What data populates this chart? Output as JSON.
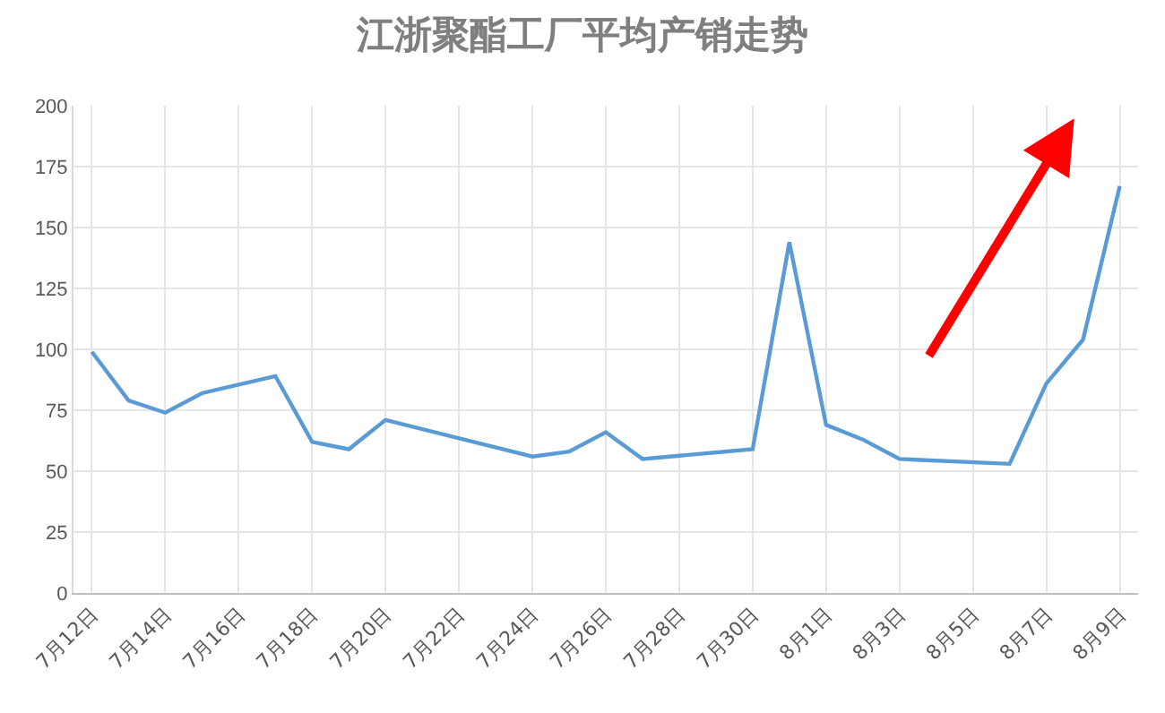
{
  "chart_data": {
    "type": "line",
    "title": "江浙聚酯工厂平均产销走势",
    "x": [
      "--07-12",
      "--07-13",
      "--07-14",
      "--07-15",
      "--07-17",
      "--07-18",
      "--07-19",
      "--07-20",
      "--07-24",
      "--07-25",
      "--07-26",
      "--07-27",
      "--07-30",
      "--07-31",
      "--08-01",
      "--08-02",
      "--08-03",
      "--08-06",
      "--08-07",
      "--08-08",
      "--08-09"
    ],
    "series": [
      {
        "color": "#5b9bd5",
        "values": [
          99,
          79,
          74,
          82,
          89,
          62,
          59,
          71,
          56,
          58,
          66,
          55,
          59,
          144,
          69,
          63,
          55,
          53,
          86,
          104,
          167
        ]
      }
    ],
    "xlim": [
      "--07-11T12:00",
      "--08-09T12:00"
    ],
    "xticks": [
      {
        "value": "--07-12",
        "label": "7月12日"
      },
      {
        "value": "--07-14",
        "label": "7月14日"
      },
      {
        "value": "--07-16",
        "label": "7月16日"
      },
      {
        "value": "--07-18",
        "label": "7月18日"
      },
      {
        "value": "--07-20",
        "label": "7月20日"
      },
      {
        "value": "--07-22",
        "label": "7月22日"
      },
      {
        "value": "--07-24",
        "label": "7月24日"
      },
      {
        "value": "--07-26",
        "label": "7月26日"
      },
      {
        "value": "--07-28",
        "label": "7月28日"
      },
      {
        "value": "--07-30",
        "label": "7月30日"
      },
      {
        "value": "--08-01",
        "label": "8月1日"
      },
      {
        "value": "--08-03",
        "label": "8月3日"
      },
      {
        "value": "--08-05",
        "label": "8月5日"
      },
      {
        "value": "--08-07",
        "label": "8月7日"
      },
      {
        "value": "--08-09",
        "label": "8月9日"
      }
    ],
    "ylim": [
      0,
      200
    ],
    "yticks": [
      0,
      25,
      50,
      75,
      100,
      125,
      150,
      175,
      200
    ],
    "grid": true,
    "marker": "none",
    "line_style": "solid"
  }
}
